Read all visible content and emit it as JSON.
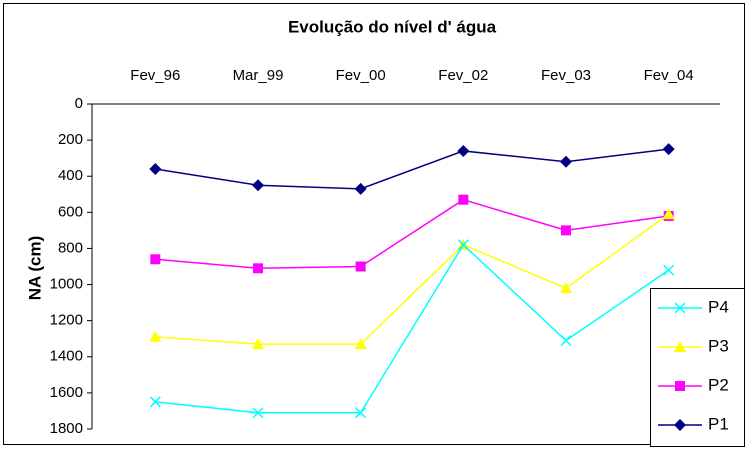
{
  "chart_data": {
    "type": "line",
    "title": "Evolução do nível d' água",
    "y_label": "NA (cm)",
    "categories": [
      "Fev_96",
      "Mar_99",
      "Fev_00",
      "Fev_02",
      "Fev_03",
      "Fev_04"
    ],
    "series": [
      {
        "name": "P4",
        "color": "#00ffff",
        "marker": "x",
        "values": [
          1650,
          1710,
          1710,
          780,
          1310,
          920
        ]
      },
      {
        "name": "P3",
        "color": "#ffff00",
        "marker": "triangle",
        "values": [
          1290,
          1330,
          1330,
          780,
          1020,
          610
        ]
      },
      {
        "name": "P2",
        "color": "#ff00ff",
        "marker": "square",
        "values": [
          860,
          910,
          900,
          530,
          700,
          620
        ]
      },
      {
        "name": "P1",
        "color": "#000080",
        "marker": "diamond",
        "values": [
          360,
          450,
          470,
          260,
          320,
          250
        ]
      }
    ],
    "ylim": [
      0,
      1800
    ],
    "yticks": [
      0,
      200,
      400,
      600,
      800,
      1000,
      1200,
      1400,
      1600,
      1800
    ],
    "y_inverted": true,
    "x_axis_position": "top",
    "grid": false,
    "legend": "bottom-right"
  }
}
